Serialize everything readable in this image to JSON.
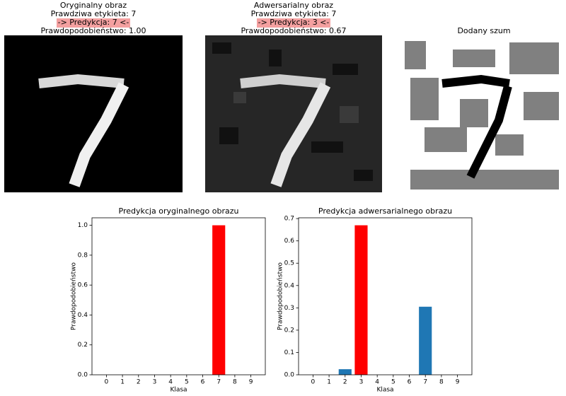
{
  "images": [
    {
      "title": "Oryginalny obraz",
      "label": "Prawdziwa etykieta: 7",
      "prediction": "-> Predykcja: 7 <-",
      "probability": "Prawdopodobieństwo: 1.00"
    },
    {
      "title": "Adwersarialny obraz",
      "label": "Prawdziwa etykieta: 7",
      "prediction": "-> Predykcja: 3 <-",
      "probability": "Prawdopodobieństwo: 0.67"
    },
    {
      "title": "Dodany szum"
    }
  ],
  "chart_data": [
    {
      "type": "bar",
      "title": "Predykcja oryginalnego obrazu",
      "x_label": "Klasa",
      "y_label": "Prawdopodobieństwo",
      "categories": [
        "0",
        "1",
        "2",
        "3",
        "4",
        "5",
        "6",
        "7",
        "8",
        "9"
      ],
      "values": [
        0,
        0,
        0,
        0,
        0,
        0,
        0,
        1.0,
        0,
        0
      ],
      "colors": [
        "#1f77b4",
        "#1f77b4",
        "#1f77b4",
        "#1f77b4",
        "#1f77b4",
        "#1f77b4",
        "#1f77b4",
        "#ff0000",
        "#1f77b4",
        "#1f77b4"
      ],
      "ylim": [
        0,
        1.05
      ],
      "yticks": [
        {
          "value": 0,
          "label": "0.0"
        },
        {
          "value": 0.2,
          "label": "0.2"
        },
        {
          "value": 0.4,
          "label": "0.4"
        },
        {
          "value": 0.6,
          "label": "0.6"
        },
        {
          "value": 0.8,
          "label": "0.8"
        },
        {
          "value": 1,
          "label": "1.0"
        }
      ]
    },
    {
      "type": "bar",
      "title": "Predykcja adwersarialnego obrazu",
      "x_label": "Klasa",
      "y_label": "Prawdopodobieństwo",
      "categories": [
        "0",
        "1",
        "2",
        "3",
        "4",
        "5",
        "6",
        "7",
        "8",
        "9"
      ],
      "values": [
        0,
        0,
        0.025,
        0.67,
        0,
        0,
        0,
        0.305,
        0,
        0
      ],
      "colors": [
        "#1f77b4",
        "#1f77b4",
        "#1f77b4",
        "#ff0000",
        "#1f77b4",
        "#1f77b4",
        "#1f77b4",
        "#1f77b4",
        "#1f77b4",
        "#1f77b4"
      ],
      "ylim": [
        0,
        0.7035
      ],
      "yticks": [
        {
          "value": 0,
          "label": "0.0"
        },
        {
          "value": 0.1,
          "label": "0.1"
        },
        {
          "value": 0.2,
          "label": "0.2"
        },
        {
          "value": 0.3,
          "label": "0.3"
        },
        {
          "value": 0.4,
          "label": "0.4"
        },
        {
          "value": 0.5,
          "label": "0.5"
        },
        {
          "value": 0.6,
          "label": "0.6"
        },
        {
          "value": 0.7,
          "label": "0.7"
        }
      ]
    }
  ]
}
